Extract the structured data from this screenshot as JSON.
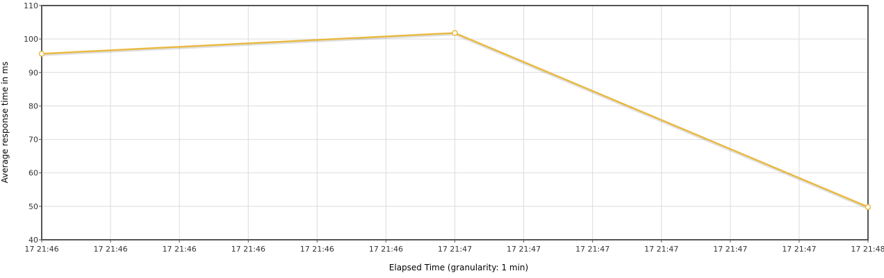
{
  "chart_data": {
    "type": "line",
    "title": "",
    "xlabel": "Elapsed Time (granularity: 1 min)",
    "ylabel": "Average response time in ms",
    "ylim": [
      40,
      110
    ],
    "y_ticks": [
      "40",
      "50",
      "60",
      "70",
      "80",
      "90",
      "100",
      "110"
    ],
    "x_ticks": [
      "17 21:46",
      "17 21:46",
      "17 21:46",
      "17 21:46",
      "17 21:46",
      "17 21:46",
      "17 21:47",
      "17 21:47",
      "17 21:47",
      "17 21:47",
      "17 21:47",
      "17 21:47",
      "17 21:48"
    ],
    "x_unit_note": "minutes",
    "grid": true,
    "legend": "none",
    "series": [
      {
        "color": "#e9b942",
        "points": [
          {
            "x": "17 21:46",
            "y": 95.6
          },
          {
            "x": "17 21:47",
            "y": 101.8
          },
          {
            "x": "17 21:48",
            "y": 49.8
          }
        ]
      }
    ]
  }
}
